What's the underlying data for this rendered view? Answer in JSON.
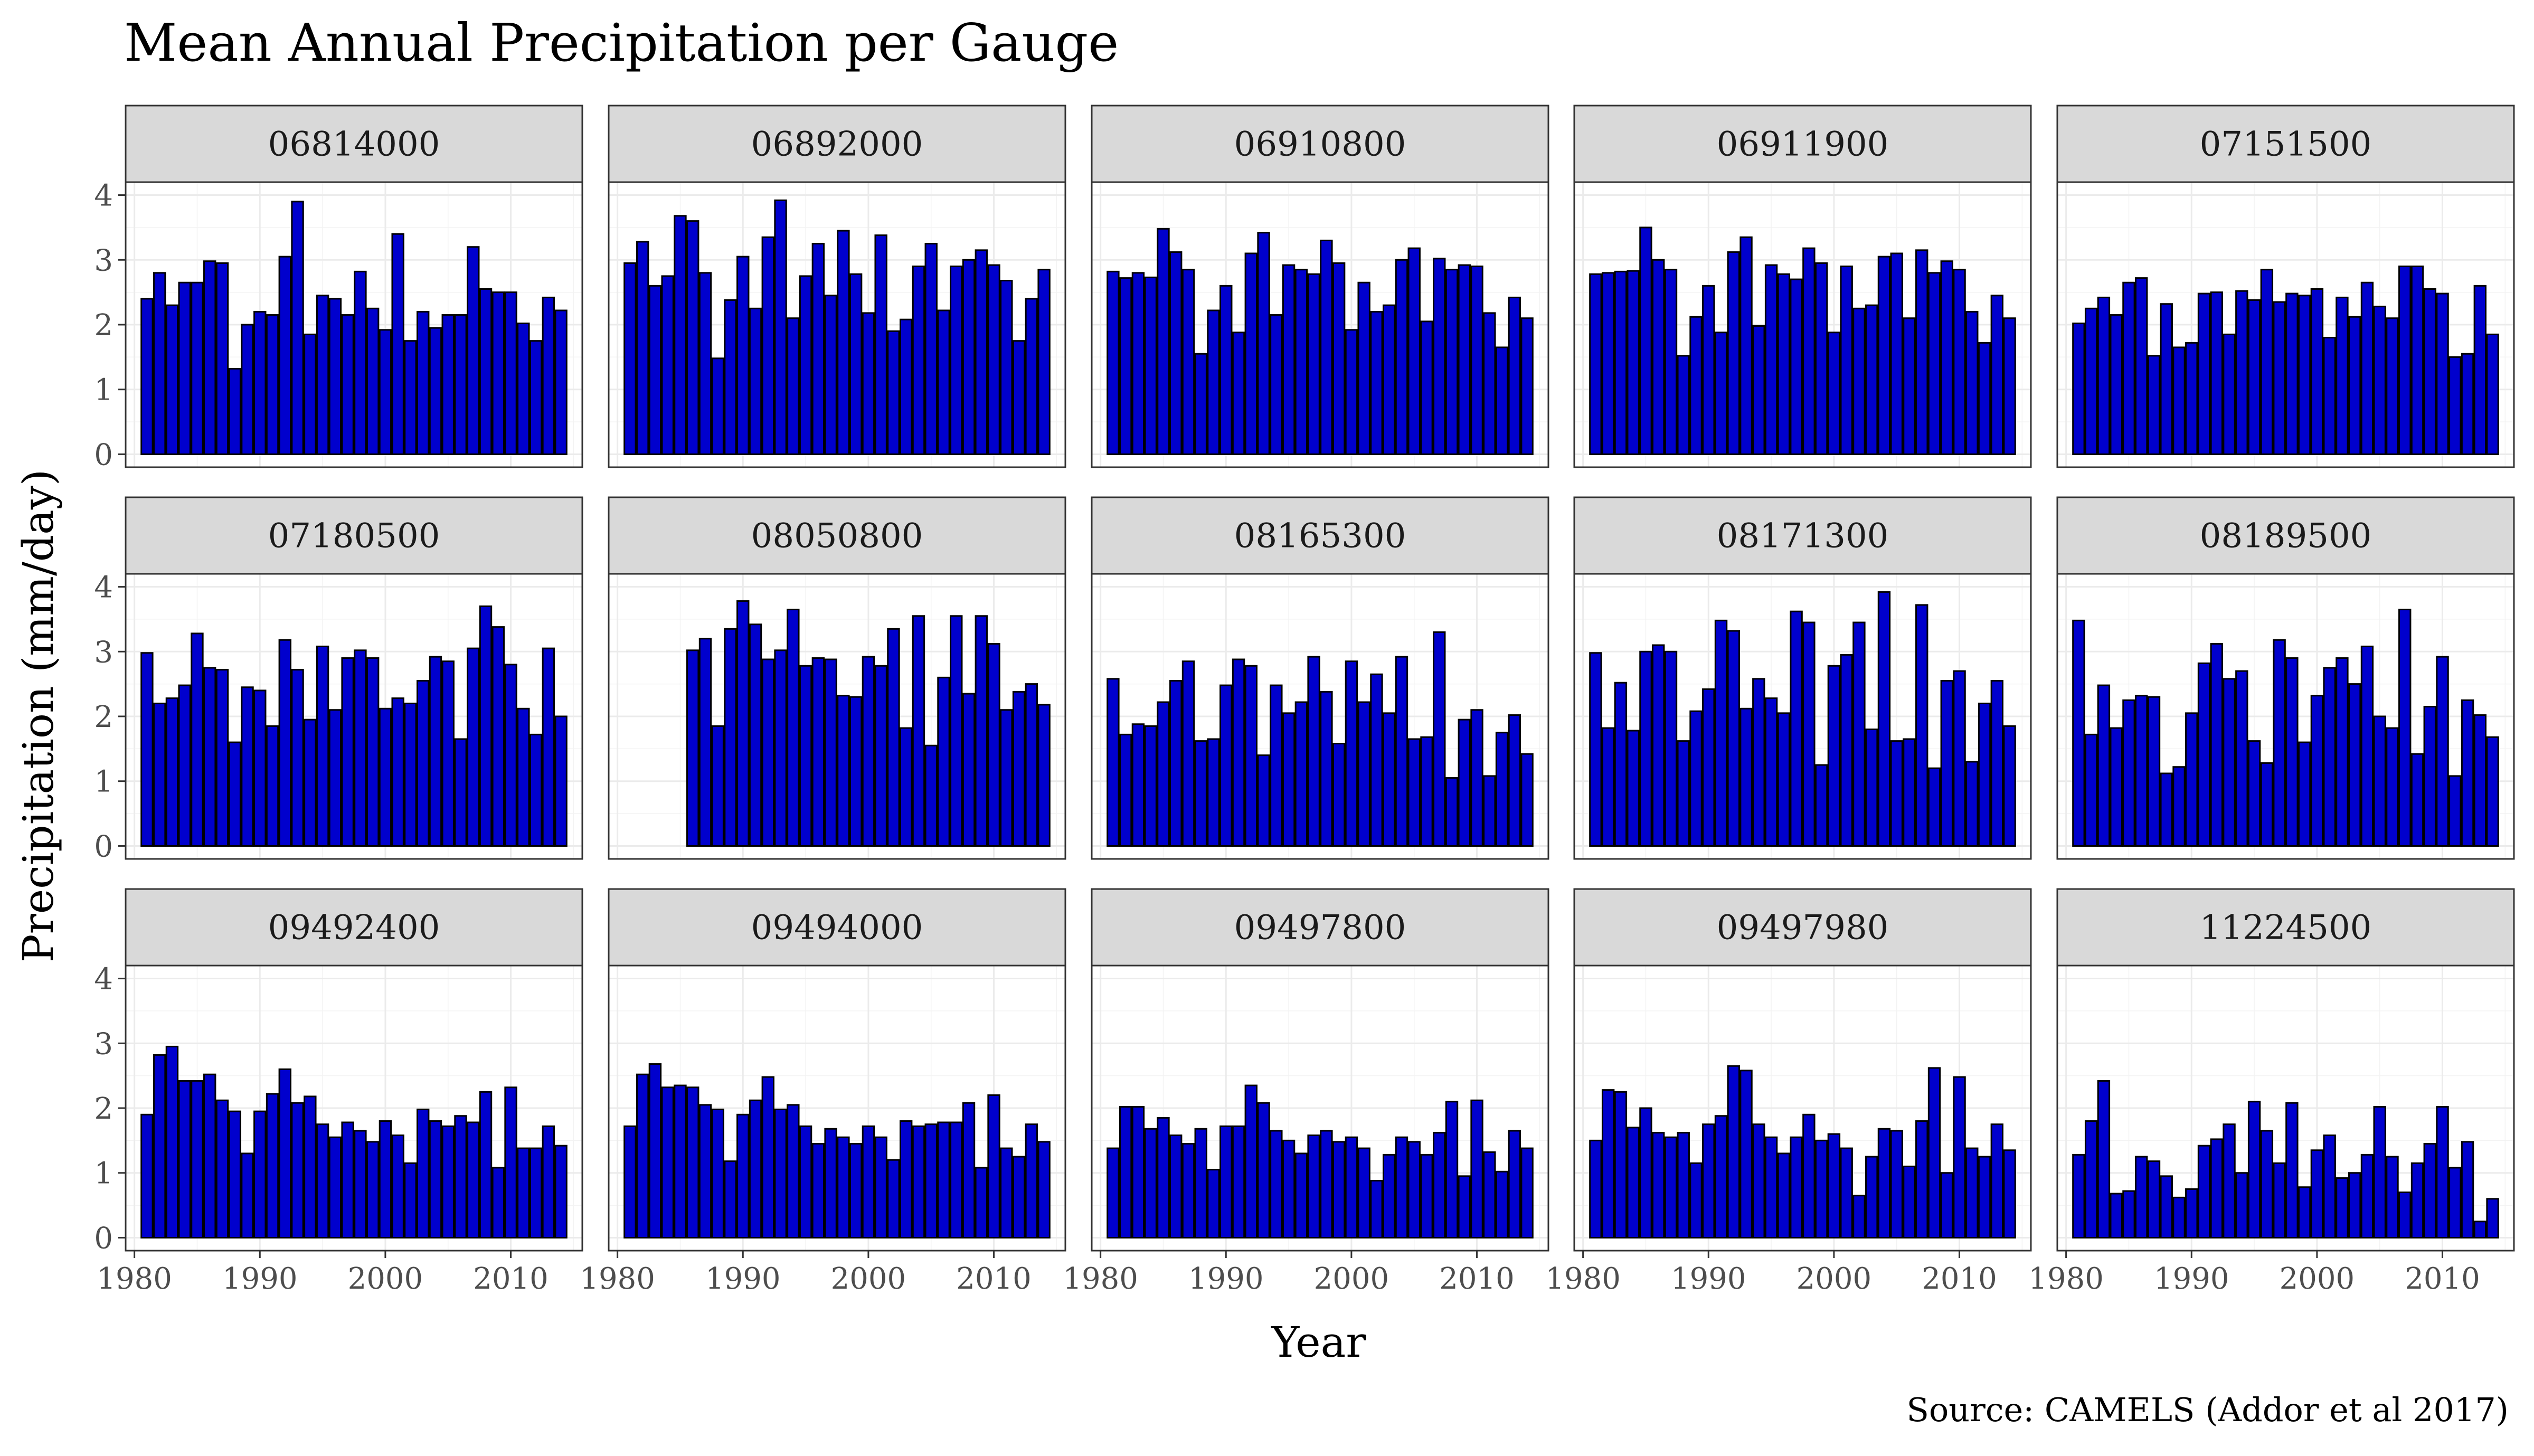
{
  "chart_data": {
    "type": "bar",
    "layout": "facet_wrap",
    "title": "Mean Annual Precipitation per Gauge",
    "xlabel": "Year",
    "ylabel": "Precipitation (mm/day)",
    "caption": "Source: CAMELS (Addor et al 2017)",
    "ylim": [
      0,
      4
    ],
    "y_ticks": [
      0,
      1,
      2,
      3,
      4
    ],
    "x_ticks": [
      1980,
      1990,
      2000,
      2010
    ],
    "x_tick_labels": [
      "1980",
      "1990",
      "2000",
      "2010"
    ],
    "y_tick_labels": [
      "0",
      "1",
      "2",
      "3",
      "4"
    ],
    "years": [
      1981,
      1982,
      1983,
      1984,
      1985,
      1986,
      1987,
      1988,
      1989,
      1990,
      1991,
      1992,
      1993,
      1994,
      1995,
      1996,
      1997,
      1998,
      1999,
      2000,
      2001,
      2002,
      2003,
      2004,
      2005,
      2006,
      2007,
      2008,
      2009,
      2010,
      2011,
      2012,
      2013,
      2014
    ],
    "bar_color": "#0000cd",
    "bar_outline": "#000000",
    "grid": true,
    "panels": [
      {
        "gauge": "06814000",
        "values": [
          2.4,
          2.8,
          2.3,
          2.65,
          2.65,
          2.98,
          2.95,
          1.32,
          2.0,
          2.2,
          2.15,
          3.05,
          3.9,
          1.85,
          2.45,
          2.4,
          2.15,
          2.82,
          2.25,
          1.92,
          3.4,
          1.75,
          2.2,
          1.95,
          2.15,
          2.15,
          3.2,
          2.55,
          2.5,
          2.5,
          2.02,
          1.75,
          2.42,
          2.22
        ]
      },
      {
        "gauge": "06892000",
        "values": [
          2.95,
          3.28,
          2.6,
          2.75,
          3.68,
          3.6,
          2.8,
          1.48,
          2.38,
          3.05,
          2.25,
          3.35,
          3.92,
          2.1,
          2.75,
          3.25,
          2.45,
          3.45,
          2.78,
          2.18,
          3.38,
          1.9,
          2.08,
          2.9,
          3.25,
          2.22,
          2.9,
          3.0,
          3.15,
          2.92,
          2.68,
          1.75,
          2.4,
          2.85
        ]
      },
      {
        "gauge": "06910800",
        "values": [
          2.82,
          2.72,
          2.8,
          2.73,
          3.48,
          3.12,
          2.85,
          1.55,
          2.22,
          2.6,
          1.88,
          3.1,
          3.42,
          2.15,
          2.92,
          2.85,
          2.78,
          3.3,
          2.95,
          1.92,
          2.65,
          2.2,
          2.3,
          3.0,
          3.18,
          2.05,
          3.02,
          2.85,
          2.92,
          2.9,
          2.18,
          1.65,
          2.42,
          2.1
        ]
      },
      {
        "gauge": "06911900",
        "values": [
          2.78,
          2.8,
          2.82,
          2.83,
          3.5,
          3.0,
          2.85,
          1.52,
          2.12,
          2.6,
          1.88,
          3.12,
          3.35,
          1.98,
          2.92,
          2.78,
          2.7,
          3.18,
          2.95,
          1.88,
          2.9,
          2.25,
          2.3,
          3.05,
          3.1,
          2.1,
          3.15,
          2.8,
          2.98,
          2.85,
          2.2,
          1.72,
          2.45,
          2.1
        ]
      },
      {
        "gauge": "07151500",
        "values": [
          2.02,
          2.25,
          2.42,
          2.15,
          2.65,
          2.72,
          1.52,
          2.32,
          1.65,
          1.72,
          2.48,
          2.5,
          1.85,
          2.52,
          2.38,
          2.85,
          2.35,
          2.48,
          2.45,
          2.55,
          1.8,
          2.42,
          2.12,
          2.65,
          2.28,
          2.1,
          2.9,
          2.9,
          2.55,
          2.48,
          1.5,
          1.55,
          2.6,
          1.85
        ]
      },
      {
        "gauge": "07180500",
        "values": [
          2.98,
          2.2,
          2.28,
          2.48,
          3.28,
          2.75,
          2.72,
          1.6,
          2.45,
          2.4,
          1.85,
          3.18,
          2.72,
          1.95,
          3.08,
          2.1,
          2.9,
          3.02,
          2.9,
          2.12,
          2.28,
          2.2,
          2.55,
          2.92,
          2.85,
          1.65,
          3.05,
          3.7,
          3.38,
          2.8,
          2.12,
          1.72,
          3.05,
          2.0
        ]
      },
      {
        "gauge": "08050800",
        "values": [
          null,
          null,
          null,
          null,
          null,
          3.02,
          3.2,
          1.85,
          3.35,
          3.78,
          3.42,
          2.88,
          3.02,
          3.65,
          2.78,
          2.9,
          2.88,
          2.32,
          2.3,
          2.92,
          2.78,
          3.35,
          1.82,
          3.55,
          1.55,
          2.6,
          3.55,
          2.35,
          3.55,
          3.12,
          2.1,
          2.38,
          2.5,
          2.18
        ]
      },
      {
        "gauge": "08165300",
        "values": [
          2.58,
          1.72,
          1.88,
          1.85,
          2.22,
          2.55,
          2.85,
          1.62,
          1.65,
          2.48,
          2.88,
          2.78,
          1.4,
          2.48,
          2.05,
          2.22,
          2.92,
          2.38,
          1.58,
          2.85,
          2.22,
          2.65,
          2.05,
          2.92,
          1.65,
          1.68,
          3.3,
          1.05,
          1.95,
          2.1,
          1.08,
          1.75,
          2.02,
          1.42
        ]
      },
      {
        "gauge": "08171300",
        "values": [
          2.98,
          1.82,
          2.52,
          1.78,
          3.0,
          3.1,
          3.0,
          1.62,
          2.08,
          2.42,
          3.48,
          3.32,
          2.12,
          2.58,
          2.28,
          2.05,
          3.62,
          3.45,
          1.25,
          2.78,
          2.95,
          3.45,
          1.8,
          3.92,
          1.62,
          1.65,
          3.72,
          1.2,
          2.55,
          2.7,
          1.3,
          2.2,
          2.55,
          1.85
        ]
      },
      {
        "gauge": "08189500",
        "values": [
          3.48,
          1.72,
          2.48,
          1.82,
          2.25,
          2.32,
          2.3,
          1.12,
          1.22,
          2.05,
          2.82,
          3.12,
          2.58,
          2.7,
          1.62,
          1.28,
          3.18,
          2.9,
          1.6,
          2.32,
          2.75,
          2.9,
          2.5,
          3.08,
          2.0,
          1.82,
          3.65,
          1.42,
          2.15,
          2.92,
          1.08,
          2.25,
          2.02,
          1.68
        ]
      },
      {
        "gauge": "09492400",
        "values": [
          1.9,
          2.82,
          2.95,
          2.42,
          2.42,
          2.52,
          2.12,
          1.95,
          1.3,
          1.95,
          2.22,
          2.6,
          2.08,
          2.18,
          1.75,
          1.55,
          1.78,
          1.65,
          1.48,
          1.8,
          1.58,
          1.15,
          1.98,
          1.8,
          1.72,
          1.88,
          1.78,
          2.25,
          1.08,
          2.32,
          1.38,
          1.38,
          1.72,
          1.42
        ]
      },
      {
        "gauge": "09494000",
        "values": [
          1.72,
          2.52,
          2.68,
          2.32,
          2.35,
          2.32,
          2.05,
          1.98,
          1.18,
          1.9,
          2.12,
          2.48,
          1.98,
          2.05,
          1.72,
          1.45,
          1.68,
          1.55,
          1.45,
          1.72,
          1.55,
          1.2,
          1.8,
          1.72,
          1.75,
          1.78,
          1.78,
          2.08,
          1.08,
          2.2,
          1.38,
          1.25,
          1.75,
          1.48
        ]
      },
      {
        "gauge": "09497800",
        "values": [
          1.38,
          2.02,
          2.02,
          1.68,
          1.85,
          1.58,
          1.45,
          1.68,
          1.05,
          1.72,
          1.72,
          2.35,
          2.08,
          1.65,
          1.5,
          1.3,
          1.58,
          1.65,
          1.48,
          1.55,
          1.38,
          0.88,
          1.28,
          1.55,
          1.48,
          1.28,
          1.62,
          2.1,
          0.95,
          2.12,
          1.32,
          1.02,
          1.65,
          1.38
        ]
      },
      {
        "gauge": "09497980",
        "values": [
          1.5,
          2.28,
          2.25,
          1.7,
          2.0,
          1.62,
          1.55,
          1.62,
          1.15,
          1.75,
          1.88,
          2.65,
          2.58,
          1.75,
          1.55,
          1.3,
          1.55,
          1.9,
          1.5,
          1.6,
          1.38,
          0.65,
          1.25,
          1.68,
          1.65,
          1.1,
          1.8,
          2.62,
          1.0,
          2.48,
          1.38,
          1.25,
          1.75,
          1.35
        ]
      },
      {
        "gauge": "11224500",
        "values": [
          1.28,
          1.8,
          2.42,
          0.68,
          0.72,
          1.25,
          1.18,
          0.95,
          0.62,
          0.75,
          1.42,
          1.52,
          1.75,
          1.0,
          2.1,
          1.65,
          1.15,
          2.08,
          0.78,
          1.35,
          1.58,
          0.92,
          1.0,
          1.28,
          2.02,
          1.25,
          0.7,
          1.15,
          1.45,
          2.02,
          1.08,
          1.48,
          0.25,
          0.6
        ]
      }
    ]
  }
}
